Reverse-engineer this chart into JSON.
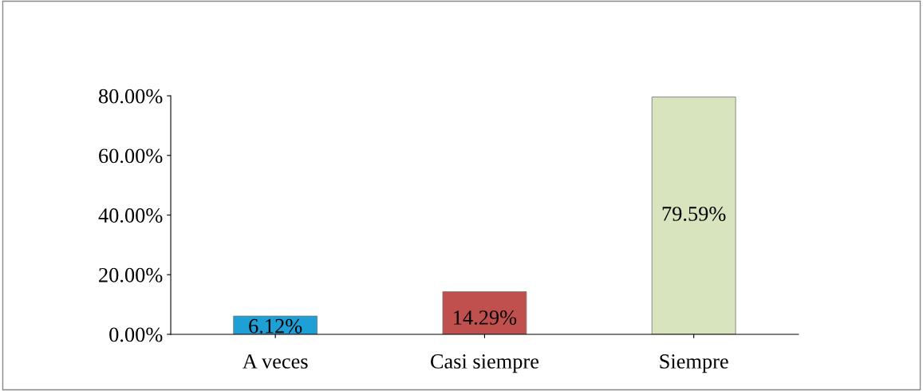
{
  "chart_data": {
    "type": "bar",
    "categories": [
      "A veces",
      "Casi siempre",
      "Siempre"
    ],
    "values": [
      6.12,
      14.29,
      79.59
    ],
    "colors": [
      "#1ea0d6",
      "#c0504d",
      "#d7e4bd"
    ],
    "value_labels": [
      "6.12%",
      "14.29%",
      "79.59%"
    ],
    "ylim": [
      0,
      80
    ],
    "yticks": [
      {
        "value": 0,
        "label": "0.00%"
      },
      {
        "value": 20,
        "label": "20.00%"
      },
      {
        "value": 40,
        "label": "40.00%"
      },
      {
        "value": 60,
        "label": "60.00%"
      },
      {
        "value": 80,
        "label": "80.00%"
      }
    ],
    "grid": false,
    "legend": false
  }
}
